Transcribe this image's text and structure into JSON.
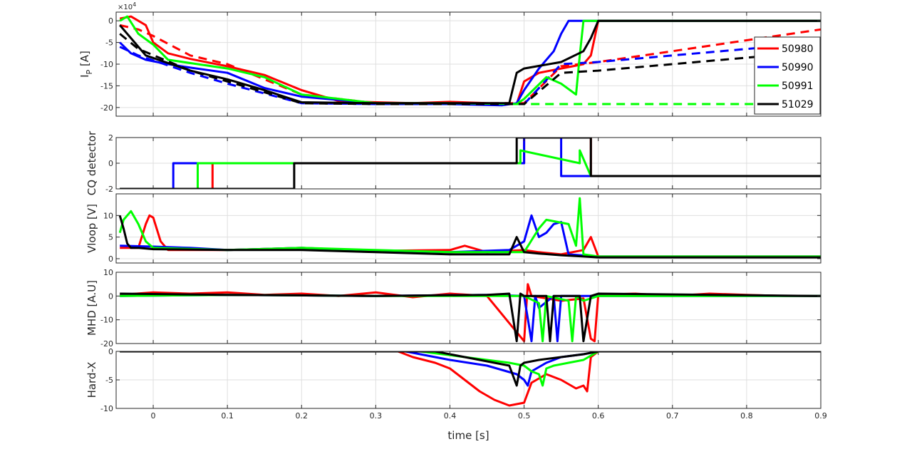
{
  "figure": {
    "xlabel": "time [s]",
    "x_ticks": [
      0,
      0.1,
      0.2,
      0.3,
      0.4,
      0.5,
      0.6,
      0.7,
      0.8,
      0.9
    ],
    "x_tick_labels": [
      "0",
      "0.1",
      "0.2",
      "0.3",
      "0.4",
      "0.5",
      "0.6",
      "0.7",
      "0.8",
      "0.9"
    ],
    "xlim": [
      -0.05,
      0.9
    ],
    "grid": true,
    "colors": {
      "50980": "#ff0000",
      "50990": "#0000ff",
      "50991": "#00ff00",
      "51029": "#000000"
    }
  },
  "chart_data": [
    {
      "type": "line",
      "ylabel_main": "I",
      "ylabel_sub": "P",
      "ylabel_unit": " [A]",
      "exponent_base": "×10",
      "exponent_power": "4",
      "ylim": [
        -22,
        2
      ],
      "y_ticks": [
        0,
        -5,
        -10,
        -15,
        -20
      ],
      "y_tick_labels": [
        "0",
        "-5",
        "-10",
        "-15",
        "-20"
      ],
      "legend": {
        "placement": "top-right",
        "entries": [
          "50980",
          "50990",
          "50991",
          "51029"
        ]
      },
      "series": [
        {
          "name": "50980",
          "color": "#ff0000",
          "style": "solid",
          "x": [
            -0.045,
            -0.03,
            -0.02,
            -0.01,
            0.0,
            0.02,
            0.05,
            0.1,
            0.15,
            0.2,
            0.25,
            0.3,
            0.35,
            0.4,
            0.45,
            0.49,
            0.5,
            0.52,
            0.55,
            0.58,
            0.59,
            0.6,
            0.9
          ],
          "y": [
            0.5,
            1.0,
            0.0,
            -1.0,
            -5.0,
            -7.5,
            -8.8,
            -10.5,
            -12.5,
            -16.0,
            -18.5,
            -18.8,
            -19.0,
            -18.7,
            -19.0,
            -19.2,
            -14.0,
            -12.0,
            -11.0,
            -10.0,
            -8.0,
            0.0,
            0.0
          ]
        },
        {
          "name": "50980 (dashed)",
          "color": "#ff0000",
          "style": "dashed",
          "x": [
            -0.045,
            -0.02,
            0.0,
            0.05,
            0.1,
            0.2,
            0.3,
            0.45,
            0.5,
            0.55,
            0.6,
            0.7,
            0.8,
            0.9
          ],
          "y": [
            -1.0,
            -2.0,
            -3.5,
            -8.0,
            -10.0,
            -17.0,
            -19.0,
            -19.0,
            -19.0,
            -10.5,
            -9.5,
            -7.0,
            -4.5,
            -2.0
          ]
        },
        {
          "name": "50990",
          "color": "#0000ff",
          "style": "solid",
          "x": [
            -0.045,
            -0.03,
            -0.01,
            0.02,
            0.05,
            0.1,
            0.15,
            0.2,
            0.3,
            0.4,
            0.47,
            0.49,
            0.5,
            0.52,
            0.54,
            0.55,
            0.56,
            0.6,
            0.9
          ],
          "y": [
            -5.0,
            -7.5,
            -9.0,
            -10.0,
            -10.8,
            -12.0,
            -15.5,
            -17.5,
            -19.0,
            -19.2,
            -19.5,
            -19.0,
            -16.0,
            -11.0,
            -7.0,
            -3.0,
            0.0,
            0.0,
            0.0
          ]
        },
        {
          "name": "50990 (dashed)",
          "color": "#0000ff",
          "style": "dashed",
          "x": [
            -0.045,
            -0.02,
            0.05,
            0.1,
            0.2,
            0.3,
            0.45,
            0.5,
            0.55,
            0.6,
            0.7,
            0.8,
            0.9
          ],
          "y": [
            -6.0,
            -8.0,
            -12.0,
            -14.5,
            -19.0,
            -19.2,
            -19.2,
            -19.2,
            -10.0,
            -9.5,
            -8.0,
            -6.5,
            -5.0
          ]
        },
        {
          "name": "50991",
          "color": "#00ff00",
          "style": "solid",
          "x": [
            -0.045,
            -0.035,
            -0.02,
            0.0,
            0.02,
            0.1,
            0.15,
            0.2,
            0.3,
            0.4,
            0.49,
            0.5,
            0.53,
            0.55,
            0.57,
            0.575,
            0.58,
            0.6,
            0.9
          ],
          "y": [
            0.0,
            1.0,
            -3.0,
            -5.5,
            -9.0,
            -11.0,
            -13.0,
            -17.0,
            -19.0,
            -19.0,
            -19.2,
            -18.0,
            -13.0,
            -14.5,
            -17.0,
            -8.0,
            0.0,
            0.0,
            0.0
          ]
        },
        {
          "name": "50991 (dashed)",
          "color": "#00ff00",
          "style": "dashed",
          "x": [
            0.49,
            0.6,
            0.7,
            0.8,
            0.9
          ],
          "y": [
            -19.2,
            -19.2,
            -19.2,
            -19.2,
            -19.2
          ]
        },
        {
          "name": "51029",
          "color": "#000000",
          "style": "solid",
          "x": [
            -0.045,
            -0.03,
            -0.01,
            0.05,
            0.1,
            0.15,
            0.2,
            0.3,
            0.4,
            0.48,
            0.49,
            0.5,
            0.55,
            0.58,
            0.59,
            0.6,
            0.9
          ],
          "y": [
            -1.0,
            -4.0,
            -8.0,
            -11.5,
            -13.5,
            -16.0,
            -18.8,
            -19.0,
            -19.0,
            -19.0,
            -12.0,
            -11.0,
            -9.5,
            -7.0,
            -4.0,
            0.0,
            0.0
          ]
        },
        {
          "name": "51029 (dashed)",
          "color": "#000000",
          "style": "dashed",
          "x": [
            -0.045,
            -0.02,
            0.05,
            0.1,
            0.2,
            0.3,
            0.45,
            0.5,
            0.55,
            0.6,
            0.7,
            0.8,
            0.9
          ],
          "y": [
            -3.0,
            -6.5,
            -11.5,
            -14.0,
            -19.0,
            -19.2,
            -19.2,
            -19.2,
            -12.0,
            -11.5,
            -10.0,
            -8.5,
            -7.0
          ]
        }
      ]
    },
    {
      "type": "line",
      "ylabel": "CQ detector",
      "ylim": [
        -2,
        2
      ],
      "y_ticks": [
        2,
        0,
        -2
      ],
      "y_tick_labels": [
        "2",
        "0",
        "-2"
      ],
      "series": [
        {
          "name": "50980",
          "color": "#ff0000",
          "style": "solid",
          "x": [
            -0.045,
            0.08,
            0.08,
            0.19,
            0.19,
            0.5,
            0.5,
            0.59,
            0.59,
            0.9
          ],
          "y": [
            -2,
            -2,
            0,
            0,
            0,
            0,
            2,
            2,
            -1,
            -1
          ]
        },
        {
          "name": "50990",
          "color": "#0000ff",
          "style": "solid",
          "x": [
            -0.045,
            0.027,
            0.027,
            0.5,
            0.5,
            0.55,
            0.55,
            0.59,
            0.59,
            0.9
          ],
          "y": [
            -2,
            -2,
            0,
            0,
            2,
            2,
            -1,
            -1,
            -1,
            -1
          ]
        },
        {
          "name": "50991",
          "color": "#00ff00",
          "style": "solid",
          "x": [
            -0.045,
            0.06,
            0.06,
            0.495,
            0.495,
            0.575,
            0.575,
            0.59,
            0.59,
            0.9
          ],
          "y": [
            -2,
            -2,
            0,
            0,
            1.0,
            0.0,
            1.0,
            -1,
            -1,
            -1
          ]
        },
        {
          "name": "51029",
          "color": "#000000",
          "style": "solid",
          "x": [
            -0.045,
            0.19,
            0.19,
            0.49,
            0.49,
            0.59,
            0.59,
            0.9
          ],
          "y": [
            -2,
            -2,
            0,
            0,
            2,
            2,
            -1,
            -1
          ]
        }
      ]
    },
    {
      "type": "line",
      "ylabel": "Vloop [V]",
      "ylim": [
        -1,
        15
      ],
      "y_ticks": [
        10,
        5,
        0
      ],
      "y_tick_labels": [
        "10",
        "5",
        "0"
      ],
      "series": [
        {
          "name": "50980",
          "color": "#ff0000",
          "style": "solid",
          "x": [
            -0.045,
            -0.02,
            -0.01,
            -0.005,
            0.0,
            0.01,
            0.02,
            0.1,
            0.2,
            0.3,
            0.4,
            0.42,
            0.45,
            0.5,
            0.52,
            0.55,
            0.58,
            0.59,
            0.6,
            0.9
          ],
          "y": [
            2.5,
            2.5,
            8.0,
            10.0,
            9.5,
            4.0,
            2.0,
            2.0,
            2.5,
            1.8,
            2.0,
            3.0,
            1.5,
            2.0,
            1.5,
            1.0,
            2.0,
            5.0,
            0.5,
            0.5
          ]
        },
        {
          "name": "50990",
          "color": "#0000ff",
          "style": "solid",
          "x": [
            -0.045,
            0.0,
            0.05,
            0.1,
            0.2,
            0.3,
            0.4,
            0.48,
            0.5,
            0.51,
            0.52,
            0.53,
            0.54,
            0.55,
            0.56,
            0.6,
            0.9
          ],
          "y": [
            3.0,
            2.8,
            2.5,
            2.0,
            2.5,
            1.8,
            1.5,
            2.0,
            4.0,
            10.0,
            5.0,
            6.0,
            8.0,
            8.5,
            1.0,
            0.5,
            0.5
          ]
        },
        {
          "name": "50991",
          "color": "#00ff00",
          "style": "solid",
          "x": [
            -0.045,
            -0.04,
            -0.03,
            -0.02,
            -0.01,
            0.0,
            0.1,
            0.2,
            0.3,
            0.4,
            0.5,
            0.52,
            0.53,
            0.56,
            0.57,
            0.575,
            0.58,
            0.6,
            0.9
          ],
          "y": [
            6.0,
            9.0,
            11.0,
            8.0,
            4.0,
            2.5,
            2.0,
            2.5,
            2.0,
            1.5,
            1.5,
            7.0,
            9.0,
            8.0,
            3.0,
            14.0,
            1.0,
            0.5,
            0.5
          ]
        },
        {
          "name": "51029",
          "color": "#000000",
          "style": "solid",
          "x": [
            -0.045,
            -0.04,
            -0.035,
            -0.03,
            -0.02,
            0.0,
            0.1,
            0.2,
            0.3,
            0.4,
            0.48,
            0.49,
            0.5,
            0.52,
            0.55,
            0.58,
            0.6,
            0.9
          ],
          "y": [
            10.0,
            7.0,
            3.5,
            2.5,
            2.5,
            2.2,
            2.0,
            2.0,
            1.5,
            1.0,
            1.0,
            5.0,
            1.5,
            1.2,
            0.8,
            0.5,
            0.3,
            0.3
          ]
        }
      ]
    },
    {
      "type": "line",
      "ylabel": "MHD [A.U]",
      "ylim": [
        -20,
        10
      ],
      "y_ticks": [
        10,
        0,
        -10,
        -20
      ],
      "y_tick_labels": [
        "10",
        "0",
        "-10",
        "-20"
      ],
      "series": [
        {
          "name": "50980",
          "color": "#ff0000",
          "style": "solid",
          "x": [
            -0.045,
            0.0,
            0.05,
            0.1,
            0.15,
            0.2,
            0.25,
            0.3,
            0.35,
            0.4,
            0.45,
            0.5,
            0.505,
            0.51,
            0.55,
            0.58,
            0.59,
            0.595,
            0.6,
            0.65,
            0.7,
            0.75,
            0.8,
            0.85,
            0.9
          ],
          "y": [
            0.5,
            1.5,
            1.0,
            1.5,
            0.5,
            1.0,
            0.0,
            1.5,
            -0.5,
            1.0,
            0.0,
            -19.0,
            5.0,
            0.0,
            -2.0,
            -1.0,
            -18.0,
            -19.0,
            0.5,
            1.0,
            0.0,
            1.0,
            0.5,
            0.0,
            0.0
          ]
        },
        {
          "name": "50990",
          "color": "#0000ff",
          "style": "solid",
          "x": [
            -0.045,
            0.1,
            0.3,
            0.45,
            0.5,
            0.51,
            0.515,
            0.52,
            0.54,
            0.545,
            0.55,
            0.56,
            0.6,
            0.9
          ],
          "y": [
            0.0,
            0.5,
            0.0,
            0.5,
            0.0,
            -19.0,
            0.0,
            -5.0,
            0.0,
            -19.0,
            0.0,
            0.0,
            0.0,
            0.0
          ]
        },
        {
          "name": "50991",
          "color": "#00ff00",
          "style": "solid",
          "x": [
            -0.045,
            0.1,
            0.3,
            0.5,
            0.52,
            0.525,
            0.53,
            0.56,
            0.565,
            0.57,
            0.58,
            0.6,
            0.9
          ],
          "y": [
            0.0,
            0.5,
            0.0,
            0.0,
            -3.0,
            -19.0,
            0.0,
            -2.0,
            -19.0,
            0.0,
            -2.0,
            0.0,
            0.0
          ]
        },
        {
          "name": "51029",
          "color": "#000000",
          "style": "solid",
          "x": [
            -0.045,
            0.1,
            0.3,
            0.45,
            0.48,
            0.49,
            0.495,
            0.5,
            0.53,
            0.535,
            0.54,
            0.575,
            0.58,
            0.59,
            0.6,
            0.9
          ],
          "y": [
            1.0,
            0.5,
            0.0,
            0.5,
            1.0,
            -19.0,
            1.0,
            0.0,
            0.0,
            -19.0,
            0.0,
            0.0,
            -19.0,
            0.0,
            1.0,
            0.0
          ]
        }
      ]
    },
    {
      "type": "line",
      "ylabel": "Hard-X",
      "ylim": [
        -10,
        0
      ],
      "y_ticks": [
        0,
        -5,
        -10
      ],
      "y_tick_labels": [
        "0",
        "-5",
        "-10"
      ],
      "series": [
        {
          "name": "50980",
          "color": "#ff0000",
          "style": "solid",
          "x": [
            -0.045,
            0.33,
            0.35,
            0.38,
            0.4,
            0.42,
            0.44,
            0.46,
            0.48,
            0.5,
            0.51,
            0.53,
            0.55,
            0.57,
            0.58,
            0.585,
            0.59,
            0.6,
            0.9
          ],
          "y": [
            0.0,
            0.0,
            -1.0,
            -2.0,
            -3.0,
            -5.0,
            -7.0,
            -8.5,
            -9.5,
            -9.0,
            -5.5,
            -4.0,
            -5.0,
            -6.5,
            -6.0,
            -7.0,
            -1.0,
            0.0,
            0.0
          ]
        },
        {
          "name": "50990",
          "color": "#0000ff",
          "style": "solid",
          "x": [
            -0.045,
            0.34,
            0.4,
            0.45,
            0.49,
            0.5,
            0.505,
            0.51,
            0.53,
            0.55,
            0.58,
            0.6,
            0.9
          ],
          "y": [
            0.0,
            0.0,
            -1.5,
            -2.5,
            -4.0,
            -5.0,
            -6.0,
            -3.5,
            -2.0,
            -1.0,
            -0.5,
            0.0,
            0.0
          ]
        },
        {
          "name": "50991",
          "color": "#00ff00",
          "style": "solid",
          "x": [
            -0.045,
            0.36,
            0.42,
            0.48,
            0.5,
            0.51,
            0.52,
            0.525,
            0.53,
            0.54,
            0.56,
            0.58,
            0.6,
            0.9
          ],
          "y": [
            0.0,
            0.0,
            -1.0,
            -2.0,
            -2.5,
            -3.5,
            -4.0,
            -6.0,
            -3.0,
            -2.5,
            -2.0,
            -1.5,
            0.0,
            0.0
          ]
        },
        {
          "name": "51029",
          "color": "#000000",
          "style": "solid",
          "x": [
            -0.045,
            0.38,
            0.42,
            0.46,
            0.48,
            0.49,
            0.495,
            0.5,
            0.52,
            0.55,
            0.58,
            0.6,
            0.9
          ],
          "y": [
            0.0,
            0.0,
            -1.0,
            -2.0,
            -2.5,
            -6.0,
            -2.5,
            -2.0,
            -1.5,
            -1.0,
            -0.5,
            0.0,
            0.0
          ]
        }
      ]
    }
  ]
}
